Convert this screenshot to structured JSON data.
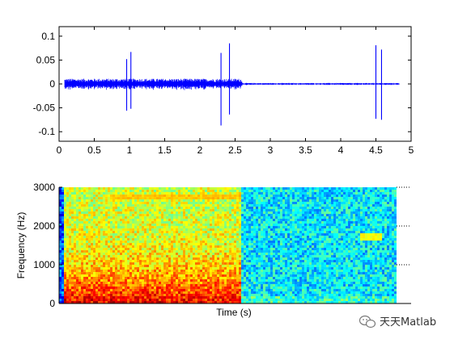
{
  "watermark": {
    "text": "天天Matlab",
    "icon": "wechat-icon"
  },
  "chart_data": [
    {
      "type": "line",
      "name": "waveform",
      "color": "#0000ff",
      "xlim": [
        0,
        5
      ],
      "ylim": [
        -0.12,
        0.12
      ],
      "xticks": [
        0,
        0.5,
        1,
        1.5,
        2,
        2.5,
        3,
        3.5,
        4,
        4.5,
        5
      ],
      "xtick_labels": [
        "0",
        "0.5",
        "1",
        "1.5",
        "2",
        "2.5",
        "3",
        "3.5",
        "4",
        "4.5",
        "5"
      ],
      "yticks": [
        0.1,
        0.05,
        0,
        -0.05,
        -0.1
      ],
      "ytick_labels": [
        "0.1",
        "0.05",
        "0",
        "-0.05",
        "-0.1"
      ],
      "signal_end": 4.83,
      "segments": [
        {
          "start": 0.08,
          "end": 2.6,
          "amplitude": 0.011
        },
        {
          "start": 2.6,
          "end": 4.83,
          "amplitude": 0.002
        }
      ],
      "spikes": [
        {
          "x": 0.96,
          "top": 0.052,
          "bottom": -0.056
        },
        {
          "x": 1.02,
          "top": 0.067,
          "bottom": -0.052
        },
        {
          "x": 2.3,
          "top": 0.065,
          "bottom": -0.087
        },
        {
          "x": 2.42,
          "top": 0.085,
          "bottom": -0.064
        },
        {
          "x": 4.5,
          "top": 0.081,
          "bottom": -0.073
        },
        {
          "x": 4.58,
          "top": 0.072,
          "bottom": -0.075
        }
      ],
      "grid": false
    },
    {
      "type": "heatmap",
      "name": "spectrogram",
      "xlabel": "Time (s)",
      "ylabel": "Frequency (Hz)",
      "xlim": [
        0,
        4.83
      ],
      "ylim": [
        0,
        3000
      ],
      "yticks": [
        0,
        1000,
        2000,
        3000
      ],
      "ytick_labels": [
        "0",
        "1000",
        "2000",
        "3000"
      ],
      "transition_time": 2.6,
      "colormap": [
        "#00008f",
        "#0000ff",
        "#0080ff",
        "#00ffff",
        "#80ff80",
        "#ffff00",
        "#ff8000",
        "#ff0000",
        "#800000"
      ],
      "active_level_low_freq": 0.9,
      "active_level_high_freq": 0.58,
      "quiet_level": 0.36,
      "bands": [
        {
          "t_start": 0.7,
          "t_end": 2.6,
          "freq": 2800,
          "level": 0.68
        },
        {
          "t_start": 4.3,
          "t_end": 4.62,
          "freq": 1750,
          "level": 0.62
        }
      ],
      "right_ticks": [
        1000,
        2000,
        3000
      ]
    }
  ]
}
